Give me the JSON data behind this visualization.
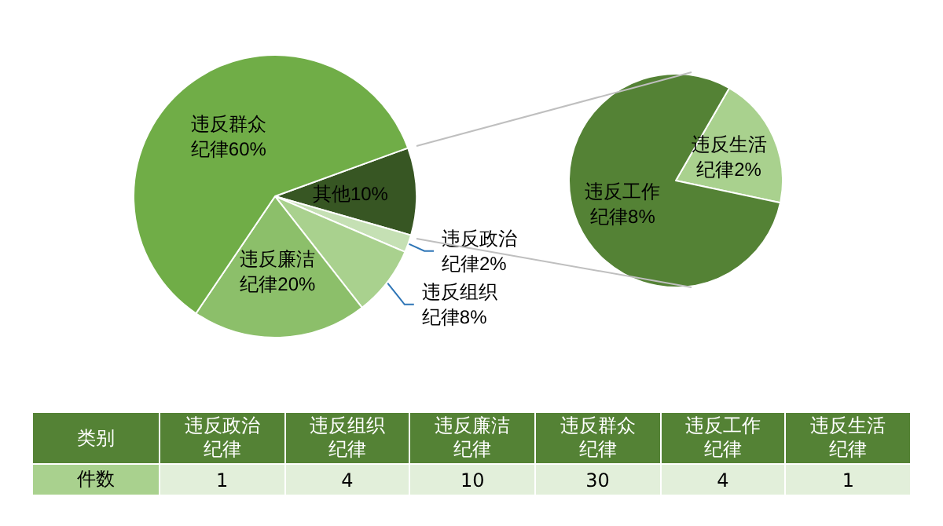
{
  "chart_data": [
    {
      "type": "pie",
      "categories": [
        "其他",
        "违反政治纪律",
        "违反组织纪律",
        "违反廉洁纪律",
        "违反群众纪律"
      ],
      "values": [
        10,
        2,
        8,
        20,
        60
      ],
      "colors": [
        "#375623",
        "#c5e0b4",
        "#a9d18e",
        "#8cbf6a",
        "#70ad47"
      ],
      "value_labels": [
        "10%",
        "2%",
        "8%",
        "20%",
        "60%"
      ],
      "legend": false
    },
    {
      "type": "pie",
      "categories": [
        "违反生活纪律",
        "违反工作纪律"
      ],
      "values": [
        2,
        8
      ],
      "colors": [
        "#a9d18e",
        "#548235"
      ],
      "value_labels": [
        "2%",
        "8%"
      ],
      "legend": false
    },
    {
      "type": "other",
      "categories": [
        "违反政治纪律",
        "违反组织纪律",
        "违反廉洁纪律",
        "违反群众纪律",
        "违反工作纪律",
        "违反生活纪律"
      ],
      "values": [
        1,
        4,
        10,
        30,
        4,
        1
      ],
      "annotations": [
        "类别",
        "件数"
      ],
      "data_labels": true
    }
  ]
}
